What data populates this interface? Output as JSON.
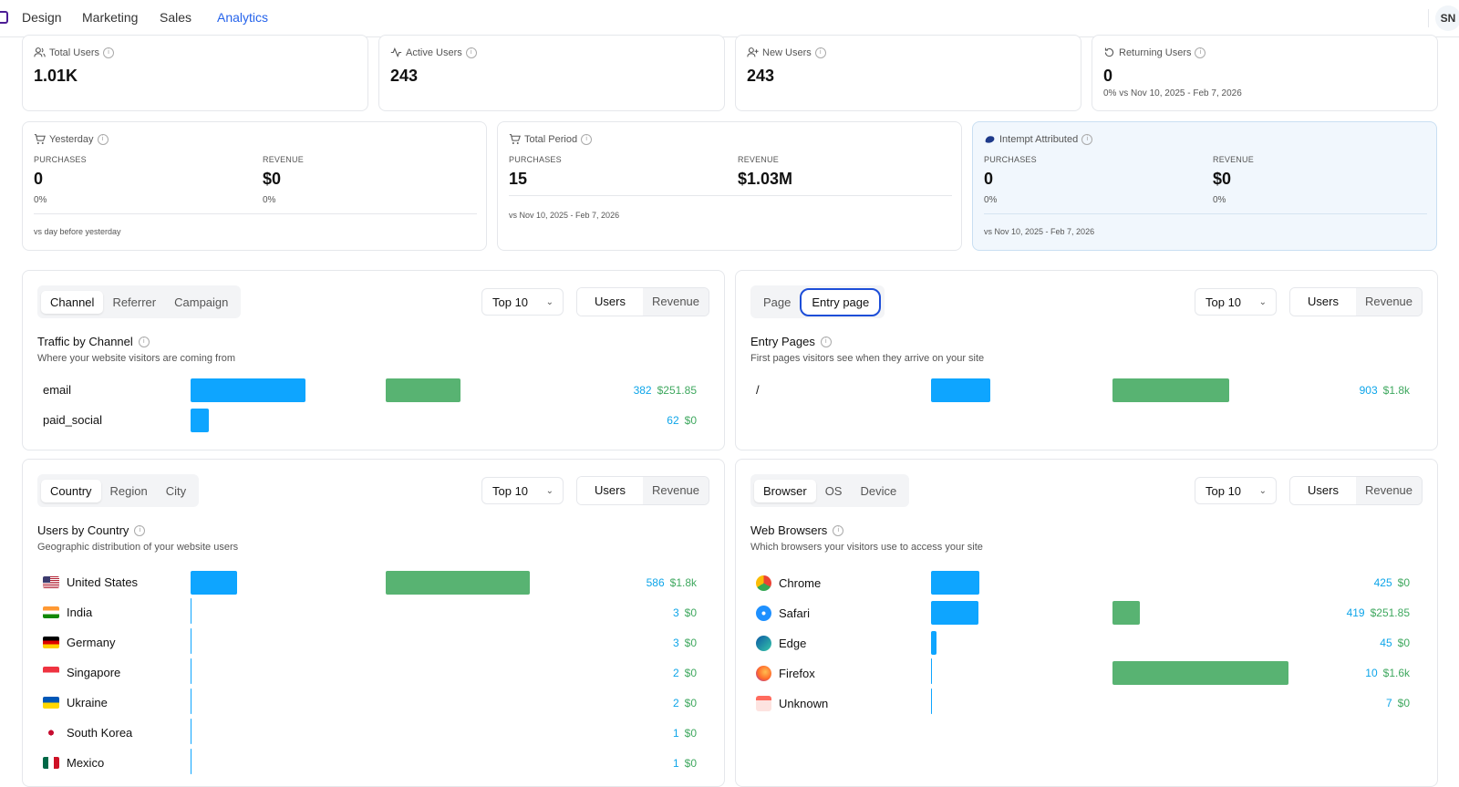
{
  "nav": {
    "tabs": [
      {
        "label": "Design"
      },
      {
        "label": "Marketing"
      },
      {
        "label": "Sales"
      },
      {
        "label": "Analytics"
      }
    ],
    "avatar": "SN"
  },
  "stats": [
    {
      "label": "Total Users",
      "value": "1.01K",
      "icon": "users-icon"
    },
    {
      "label": "Active Users",
      "value": "243",
      "icon": "activity-icon"
    },
    {
      "label": "New Users",
      "value": "243",
      "icon": "user-plus-icon"
    },
    {
      "label": "Returning Users",
      "value": "0",
      "sub": "0% vs Nov 10, 2025 - Feb 7, 2026",
      "icon": "refresh-icon"
    }
  ],
  "commerce": [
    {
      "label": "Yesterday",
      "purchases_label": "PURCHASES",
      "purchases": "0",
      "purchases_change": "0%",
      "revenue_label": "REVENUE",
      "revenue": "$0",
      "revenue_change": "0%",
      "footer": "vs day before yesterday"
    },
    {
      "label": "Total Period",
      "purchases_label": "PURCHASES",
      "purchases": "15",
      "revenue_label": "REVENUE",
      "revenue": "$1.03M",
      "footer": "vs Nov 10, 2025 - Feb 7, 2026"
    },
    {
      "label": "Intempt Attributed",
      "purchases_label": "PURCHASES",
      "purchases": "0",
      "purchases_change": "0%",
      "revenue_label": "REVENUE",
      "revenue": "$0",
      "revenue_change": "0%",
      "footer": "vs Nov 10, 2025 - Feb 7, 2026"
    }
  ],
  "channel": {
    "tabs": [
      "Channel",
      "Referrer",
      "Campaign"
    ],
    "dropdown": "Top 10",
    "toggle": [
      "Users",
      "Revenue"
    ],
    "title": "Traffic by Channel",
    "subtitle": "Where your website visitors are coming from",
    "rows": [
      {
        "label": "email",
        "users": 382,
        "users_text": "382",
        "revenue": 251.85,
        "revenue_text": "$251.85"
      },
      {
        "label": "paid_social",
        "users": 62,
        "users_text": "62",
        "revenue": 0,
        "revenue_text": "$0"
      }
    ]
  },
  "entry": {
    "tabs": [
      "Page",
      "Entry page"
    ],
    "dropdown": "Top 10",
    "toggle": [
      "Users",
      "Revenue"
    ],
    "title": "Entry Pages",
    "subtitle": "First pages visitors see when they arrive on your site",
    "rows": [
      {
        "label": "/",
        "users": 903,
        "users_text": "903",
        "revenue": 1800,
        "revenue_text": "$1.8k"
      }
    ]
  },
  "country": {
    "tabs": [
      "Country",
      "Region",
      "City"
    ],
    "dropdown": "Top 10",
    "toggle": [
      "Users",
      "Revenue"
    ],
    "title": "Users by Country",
    "subtitle": "Geographic distribution of your website users",
    "rows": [
      {
        "label": "United States",
        "users": 586,
        "users_text": "586",
        "revenue": 1800,
        "revenue_text": "$1.8k",
        "flag": "us"
      },
      {
        "label": "India",
        "users": 3,
        "users_text": "3",
        "revenue": 0,
        "revenue_text": "$0",
        "flag": "in"
      },
      {
        "label": "Germany",
        "users": 3,
        "users_text": "3",
        "revenue": 0,
        "revenue_text": "$0",
        "flag": "de"
      },
      {
        "label": "Singapore",
        "users": 2,
        "users_text": "2",
        "revenue": 0,
        "revenue_text": "$0",
        "flag": "sg"
      },
      {
        "label": "Ukraine",
        "users": 2,
        "users_text": "2",
        "revenue": 0,
        "revenue_text": "$0",
        "flag": "ua"
      },
      {
        "label": "South Korea",
        "users": 1,
        "users_text": "1",
        "revenue": 0,
        "revenue_text": "$0",
        "flag": "kr"
      },
      {
        "label": "Mexico",
        "users": 1,
        "users_text": "1",
        "revenue": 0,
        "revenue_text": "$0",
        "flag": "mx"
      }
    ]
  },
  "browser": {
    "tabs": [
      "Browser",
      "OS",
      "Device"
    ],
    "dropdown": "Top 10",
    "toggle": [
      "Users",
      "Revenue"
    ],
    "title": "Web Browsers",
    "subtitle": "Which browsers your visitors use to access your site",
    "rows": [
      {
        "label": "Chrome",
        "users": 425,
        "users_text": "425",
        "revenue": 0,
        "revenue_text": "$0",
        "icon": "chrome-icon"
      },
      {
        "label": "Safari",
        "users": 419,
        "users_text": "419",
        "revenue": 251.85,
        "revenue_text": "$251.85",
        "icon": "safari-icon"
      },
      {
        "label": "Edge",
        "users": 45,
        "users_text": "45",
        "revenue": 0,
        "revenue_text": "$0",
        "icon": "edge-icon"
      },
      {
        "label": "Firefox",
        "users": 10,
        "users_text": "10",
        "revenue": 1600,
        "revenue_text": "$1.6k",
        "icon": "firefox-icon"
      },
      {
        "label": "Unknown",
        "users": 7,
        "users_text": "7",
        "revenue": 0,
        "revenue_text": "$0",
        "icon": "unknown-browser-icon"
      }
    ]
  },
  "colors": {
    "accent": "#2563eb",
    "users_bar": "#0ea5ff",
    "revenue_bar": "#58b372"
  }
}
